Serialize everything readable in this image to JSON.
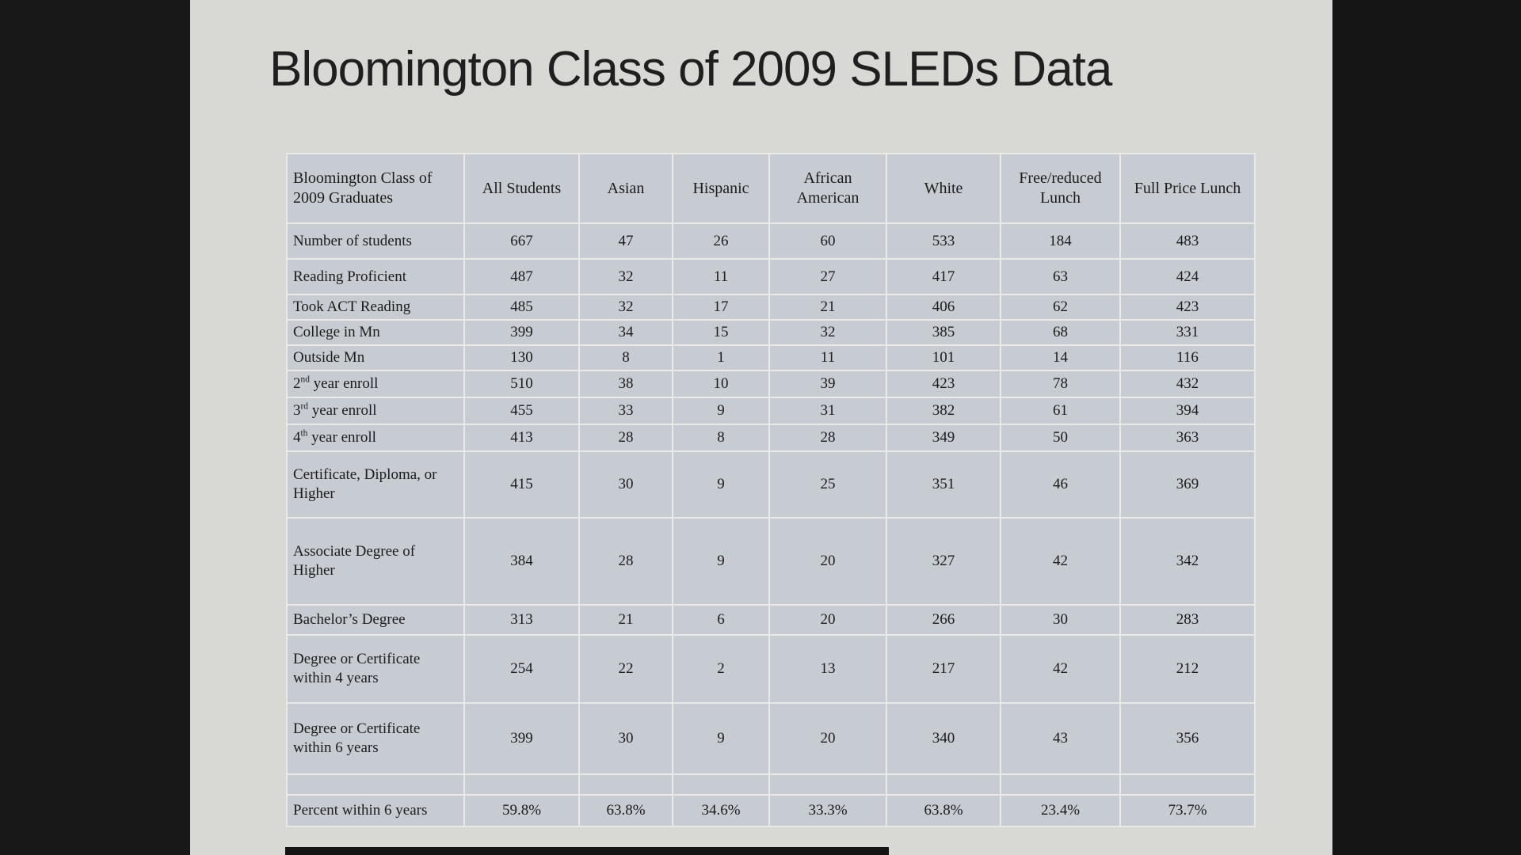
{
  "title": "Bloomington Class of 2009 SLEDs Data",
  "colors": {
    "background_bars": "#181818",
    "slide_background": "#d8d9d4",
    "table_cell_background": "#c7ccd2",
    "table_gridline": "#e9eae6",
    "text": "#1c1c1c"
  },
  "chart_data": {
    "type": "table",
    "title": "Bloomington Class of 2009 SLEDs Data",
    "columns": [
      "Bloomington Class of 2009 Graduates",
      "All Students",
      "Asian",
      "Hispanic",
      "African American",
      "White",
      "Free/reduced Lunch",
      "Full Price Lunch"
    ],
    "rows": [
      {
        "label": "Number of students",
        "values": [
          "667",
          "47",
          "26",
          "60",
          "533",
          "184",
          "483"
        ]
      },
      {
        "label": "Reading Proficient",
        "values": [
          "487",
          "32",
          "11",
          "27",
          "417",
          "63",
          "424"
        ]
      },
      {
        "label": "Took ACT Reading",
        "values": [
          "485",
          "32",
          "17",
          "21",
          "406",
          "62",
          "423"
        ]
      },
      {
        "label": "College in Mn",
        "values": [
          "399",
          "34",
          "15",
          "32",
          "385",
          "68",
          "331"
        ]
      },
      {
        "label": "Outside Mn",
        "values": [
          "130",
          "8",
          "1",
          "11",
          "101",
          "14",
          "116"
        ]
      },
      {
        "label": "2nd year enroll",
        "label_rich": "2^{nd} year enroll",
        "values": [
          "510",
          "38",
          "10",
          "39",
          "423",
          "78",
          "432"
        ]
      },
      {
        "label": "3rd year enroll",
        "label_rich": "3^{rd} year enroll",
        "values": [
          "455",
          "33",
          "9",
          "31",
          "382",
          "61",
          "394"
        ]
      },
      {
        "label": "4th year enroll",
        "label_rich": "4^{th} year enroll",
        "values": [
          "413",
          "28",
          "8",
          "28",
          "349",
          "50",
          "363"
        ]
      },
      {
        "label": "Certificate, Diploma, or Higher",
        "values": [
          "415",
          "30",
          "9",
          "25",
          "351",
          "46",
          "369"
        ]
      },
      {
        "label": "Associate Degree of Higher",
        "values": [
          "384",
          "28",
          "9",
          "20",
          "327",
          "42",
          "342"
        ]
      },
      {
        "label": "Bachelor’s Degree",
        "values": [
          "313",
          "21",
          "6",
          "20",
          "266",
          "30",
          "283"
        ]
      },
      {
        "label": "Degree or Certificate within 4 years",
        "values": [
          "254",
          "22",
          "2",
          "13",
          "217",
          "42",
          "212"
        ]
      },
      {
        "label": "Degree or Certificate within 6 years",
        "values": [
          "399",
          "30",
          "9",
          "20",
          "340",
          "43",
          "356"
        ]
      },
      {
        "label": "",
        "values": [
          "",
          "",
          "",
          "",
          "",
          "",
          ""
        ]
      },
      {
        "label": "Percent within 6 years",
        "values": [
          "59.8%",
          "63.8%",
          "34.6%",
          "33.3%",
          "63.8%",
          "23.4%",
          "73.7%"
        ]
      }
    ]
  }
}
